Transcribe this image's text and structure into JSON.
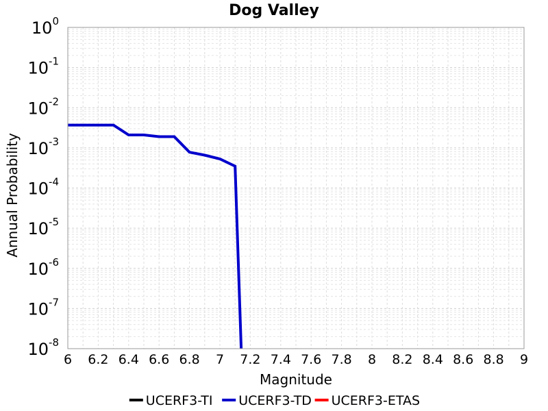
{
  "chart_data": {
    "type": "line",
    "title": "Dog Valley",
    "xlabel": "Magnitude",
    "ylabel": "Annual Probability",
    "xlim": [
      6,
      9
    ],
    "ylim": [
      1e-08,
      1
    ],
    "y_scale": "log",
    "grid": true,
    "legend_position": "bottom",
    "x_ticks": [
      "6",
      "6.2",
      "6.4",
      "6.6",
      "6.8",
      "7",
      "7.2",
      "7.4",
      "7.6",
      "7.8",
      "8",
      "8.2",
      "8.4",
      "8.6",
      "8.8",
      "9"
    ],
    "y_ticks": [
      {
        "base": "10",
        "exp": "0",
        "value": 1
      },
      {
        "base": "10",
        "exp": "-1",
        "value": 0.1
      },
      {
        "base": "10",
        "exp": "-2",
        "value": 0.01
      },
      {
        "base": "10",
        "exp": "-3",
        "value": 0.001
      },
      {
        "base": "10",
        "exp": "-4",
        "value": 0.0001
      },
      {
        "base": "10",
        "exp": "-5",
        "value": 1e-05
      },
      {
        "base": "10",
        "exp": "-6",
        "value": 1e-06
      },
      {
        "base": "10",
        "exp": "-7",
        "value": 1e-07
      },
      {
        "base": "10",
        "exp": "-8",
        "value": 1e-08
      }
    ],
    "series": [
      {
        "name": "UCERF3-TI",
        "color": "#000000",
        "x": [],
        "y": []
      },
      {
        "name": "UCERF3-ETAS",
        "color": "#ff0000",
        "x": [],
        "y": []
      },
      {
        "name": "UCERF3-TD",
        "color": "#0000cc",
        "x": [
          6.0,
          6.1,
          6.2,
          6.3,
          6.4,
          6.5,
          6.6,
          6.7,
          6.8,
          6.9,
          7.0,
          7.1,
          7.14
        ],
        "y": [
          0.0037,
          0.0037,
          0.0037,
          0.0037,
          0.0021,
          0.0021,
          0.0019,
          0.0019,
          0.00078,
          0.00066,
          0.00053,
          0.00035,
          1e-08
        ]
      }
    ],
    "legend": [
      {
        "name": "UCERF3-TI",
        "color": "#000000"
      },
      {
        "name": "UCERF3-TD",
        "color": "#0000cc"
      },
      {
        "name": "UCERF3-ETAS",
        "color": "#ff0000"
      }
    ]
  }
}
